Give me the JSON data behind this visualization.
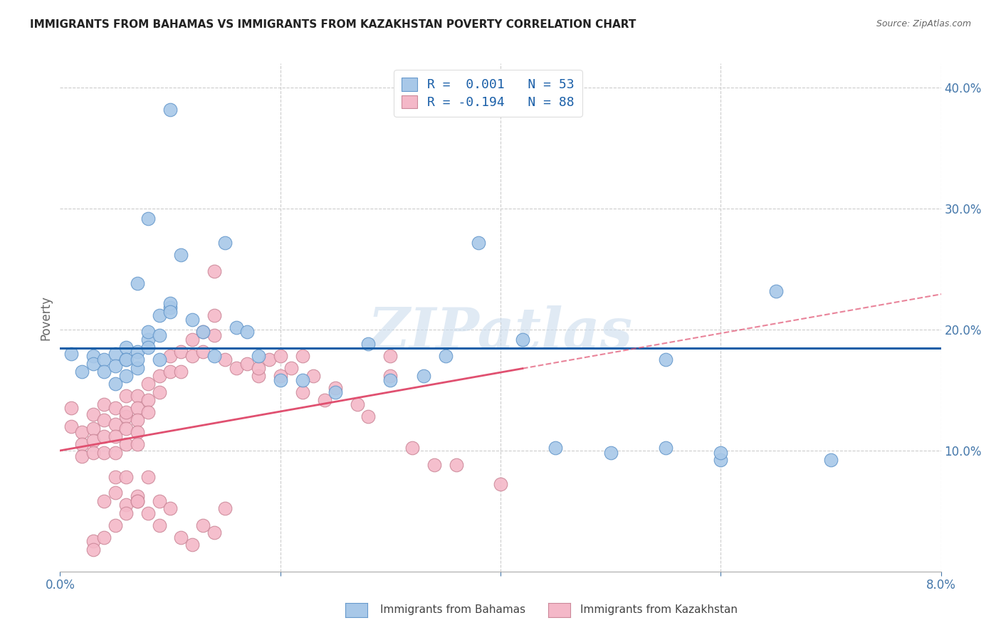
{
  "title": "IMMIGRANTS FROM BAHAMAS VS IMMIGRANTS FROM KAZAKHSTAN POVERTY CORRELATION CHART",
  "source": "Source: ZipAtlas.com",
  "ylabel": "Poverty",
  "xlim": [
    0.0,
    0.08
  ],
  "ylim": [
    0.0,
    0.42
  ],
  "blue_color": "#a8c8e8",
  "blue_edge_color": "#6699cc",
  "pink_color": "#f4b8c8",
  "pink_edge_color": "#cc8899",
  "blue_line_color": "#1a5fa8",
  "pink_line_color": "#e05070",
  "tick_label_color": "#4477aa",
  "watermark": "ZIPatlas",
  "legend_line1": "R =  0.001   N = 53",
  "legend_line2": "R = -0.194   N = 88",
  "bahamas_x": [
    0.001,
    0.002,
    0.003,
    0.003,
    0.004,
    0.004,
    0.005,
    0.005,
    0.005,
    0.006,
    0.006,
    0.006,
    0.007,
    0.007,
    0.007,
    0.008,
    0.008,
    0.008,
    0.009,
    0.009,
    0.009,
    0.01,
    0.01,
    0.01,
    0.011,
    0.012,
    0.013,
    0.014,
    0.015,
    0.016,
    0.017,
    0.018,
    0.02,
    0.022,
    0.025,
    0.028,
    0.03,
    0.033,
    0.035,
    0.038,
    0.042,
    0.045,
    0.05,
    0.055,
    0.06,
    0.065,
    0.07,
    0.01,
    0.008,
    0.007,
    0.006,
    0.06,
    0.055
  ],
  "bahamas_y": [
    0.18,
    0.165,
    0.178,
    0.172,
    0.175,
    0.165,
    0.18,
    0.17,
    0.155,
    0.185,
    0.175,
    0.175,
    0.182,
    0.168,
    0.175,
    0.192,
    0.185,
    0.198,
    0.175,
    0.195,
    0.212,
    0.218,
    0.222,
    0.215,
    0.262,
    0.208,
    0.198,
    0.178,
    0.272,
    0.202,
    0.198,
    0.178,
    0.158,
    0.158,
    0.148,
    0.188,
    0.158,
    0.162,
    0.178,
    0.272,
    0.192,
    0.102,
    0.098,
    0.102,
    0.092,
    0.232,
    0.092,
    0.382,
    0.292,
    0.238,
    0.162,
    0.098,
    0.175
  ],
  "kazakhstan_x": [
    0.001,
    0.001,
    0.002,
    0.002,
    0.002,
    0.003,
    0.003,
    0.003,
    0.003,
    0.004,
    0.004,
    0.004,
    0.004,
    0.005,
    0.005,
    0.005,
    0.005,
    0.006,
    0.006,
    0.006,
    0.006,
    0.006,
    0.007,
    0.007,
    0.007,
    0.007,
    0.007,
    0.008,
    0.008,
    0.008,
    0.009,
    0.009,
    0.01,
    0.01,
    0.011,
    0.011,
    0.012,
    0.012,
    0.013,
    0.013,
    0.014,
    0.014,
    0.015,
    0.016,
    0.017,
    0.018,
    0.019,
    0.02,
    0.021,
    0.022,
    0.023,
    0.024,
    0.025,
    0.027,
    0.028,
    0.03,
    0.032,
    0.034,
    0.036,
    0.04,
    0.014,
    0.018,
    0.02,
    0.022,
    0.03,
    0.004,
    0.005,
    0.005,
    0.006,
    0.006,
    0.007,
    0.007,
    0.008,
    0.009,
    0.01,
    0.011,
    0.012,
    0.013,
    0.014,
    0.015,
    0.003,
    0.003,
    0.004,
    0.005,
    0.006,
    0.007,
    0.008,
    0.009
  ],
  "kazakhstan_y": [
    0.135,
    0.12,
    0.115,
    0.105,
    0.095,
    0.13,
    0.118,
    0.108,
    0.098,
    0.125,
    0.138,
    0.112,
    0.098,
    0.135,
    0.122,
    0.112,
    0.098,
    0.128,
    0.145,
    0.132,
    0.118,
    0.105,
    0.145,
    0.135,
    0.125,
    0.115,
    0.105,
    0.155,
    0.142,
    0.132,
    0.162,
    0.148,
    0.178,
    0.165,
    0.182,
    0.165,
    0.192,
    0.178,
    0.198,
    0.182,
    0.212,
    0.195,
    0.175,
    0.168,
    0.172,
    0.162,
    0.175,
    0.162,
    0.168,
    0.148,
    0.162,
    0.142,
    0.152,
    0.138,
    0.128,
    0.178,
    0.102,
    0.088,
    0.088,
    0.072,
    0.248,
    0.168,
    0.178,
    0.178,
    0.162,
    0.058,
    0.078,
    0.065,
    0.078,
    0.055,
    0.062,
    0.058,
    0.078,
    0.058,
    0.052,
    0.028,
    0.022,
    0.038,
    0.032,
    0.052,
    0.025,
    0.018,
    0.028,
    0.038,
    0.048,
    0.058,
    0.048,
    0.038
  ]
}
